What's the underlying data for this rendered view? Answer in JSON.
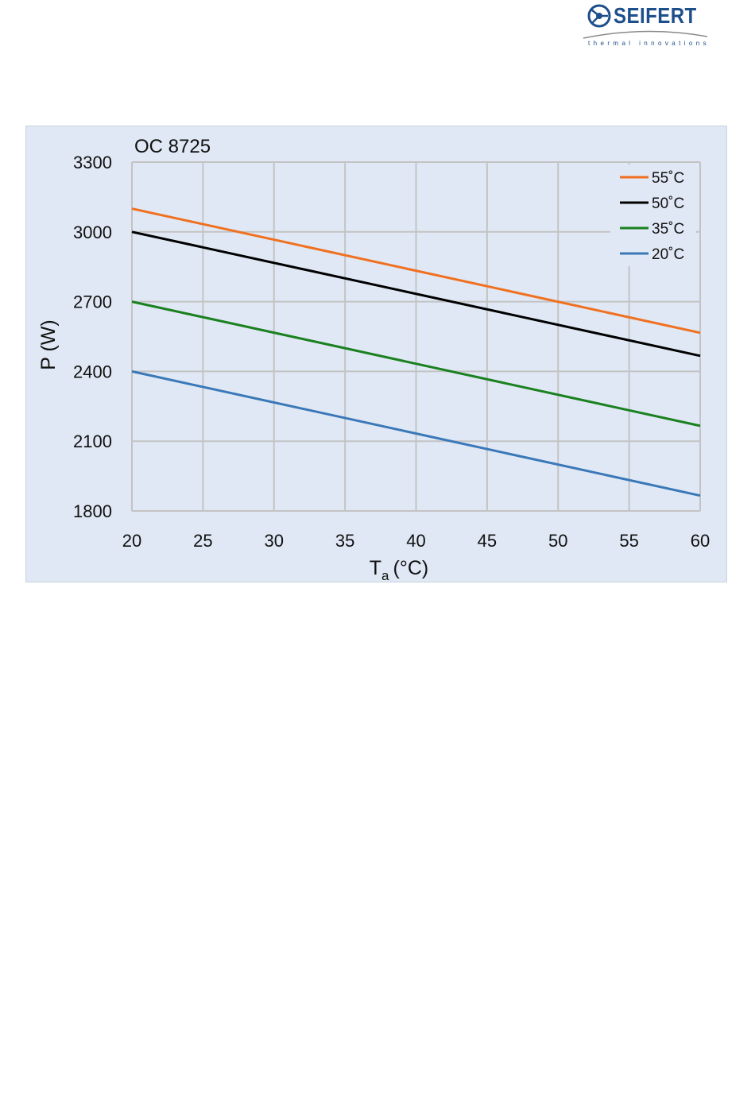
{
  "logo": {
    "brand": "SEIFERT",
    "tagline": "thermal innovations",
    "color": "#1d4f8c"
  },
  "chart_data": {
    "type": "line",
    "title": "OC 8725",
    "xlabel": "T",
    "xlabel_subscript": "a",
    "xlabel_unit": "(°C)",
    "ylabel": "P (W)",
    "x": [
      20,
      25,
      30,
      35,
      40,
      45,
      50,
      55,
      60
    ],
    "xlim": [
      20,
      60
    ],
    "ylim": [
      1800,
      3300
    ],
    "yticks": [
      1800,
      2100,
      2400,
      2700,
      3000,
      3300
    ],
    "grid": true,
    "legend_position": "top-right",
    "series": [
      {
        "name": "55˚C",
        "color": "#f07020",
        "x": [
          20,
          60
        ],
        "values": [
          3100,
          2566
        ]
      },
      {
        "name": "50˚C",
        "color": "#000000",
        "x": [
          20,
          60
        ],
        "values": [
          3000,
          2467
        ]
      },
      {
        "name": "35˚C",
        "color": "#1a8020",
        "x": [
          20,
          60
        ],
        "values": [
          2700,
          2166
        ]
      },
      {
        "name": "20˚C",
        "color": "#3a78b8",
        "x": [
          20,
          60
        ],
        "values": [
          2400,
          1866
        ]
      }
    ]
  }
}
